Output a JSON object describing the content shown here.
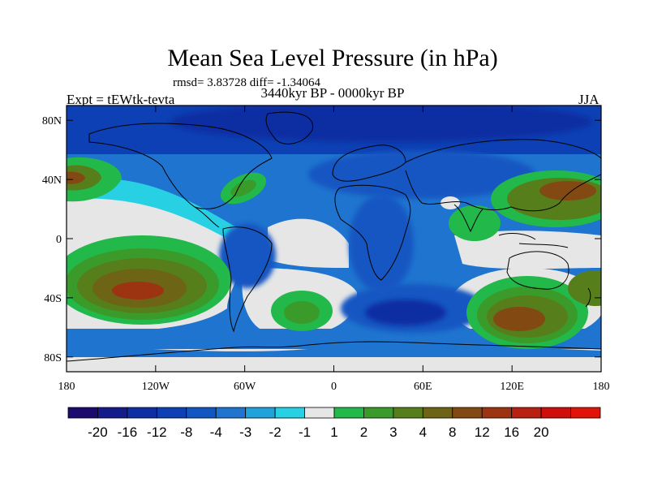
{
  "chart_data": {
    "type": "heatmap",
    "title": "Mean Sea Level Pressure (in hPa)",
    "stats": "rmsd= 3.83728 diff= -1.34064",
    "period": "3440kyr BP - 0000kyr BP",
    "experiment": "Expt = tEWtk-tevta",
    "season": "JJA",
    "x_range": [
      -180,
      180
    ],
    "y_range": [
      -90,
      90
    ],
    "x_ticks": [
      {
        "value": -180,
        "label": "180"
      },
      {
        "value": -120,
        "label": "120W"
      },
      {
        "value": -60,
        "label": "60W"
      },
      {
        "value": 0,
        "label": "0"
      },
      {
        "value": 60,
        "label": "60E"
      },
      {
        "value": 120,
        "label": "120E"
      },
      {
        "value": 180,
        "label": "180"
      }
    ],
    "y_ticks": [
      {
        "value": 80,
        "label": "80N"
      },
      {
        "value": 40,
        "label": "40N"
      },
      {
        "value": 0,
        "label": "0"
      },
      {
        "value": -40,
        "label": "40S"
      },
      {
        "value": -80,
        "label": "80S"
      }
    ],
    "colorbar": {
      "colors": [
        "#1c0a6e",
        "#141b8a",
        "#0e2ea3",
        "#0d40b4",
        "#1256c2",
        "#1f74cf",
        "#22a2da",
        "#27d0e3",
        "#e6e6e6",
        "#22b84a",
        "#3b9b2a",
        "#567f1c",
        "#6d6415",
        "#824913",
        "#9c3412",
        "#b82011",
        "#cf0f0c",
        "#e01408"
      ],
      "labels": [
        "-20",
        "-16",
        "-12",
        "-8",
        "-4",
        "-3",
        "-2",
        "-1",
        "1",
        "2",
        "3",
        "4",
        "8",
        "12",
        "16",
        "20"
      ]
    },
    "anomaly_regions": [
      {
        "region": "North Pacific high (west)",
        "lon": -170,
        "lat": 40,
        "value": 8
      },
      {
        "region": "North Atlantic high",
        "lon": -65,
        "lat": 37,
        "value": 2
      },
      {
        "region": "South Pacific high",
        "lon": -135,
        "lat": -30,
        "value": 12
      },
      {
        "region": "South Atlantic high",
        "lon": -20,
        "lat": -40,
        "value": 3
      },
      {
        "region": "Indian Ocean / Australia high",
        "lon": 110,
        "lat": -42,
        "value": 12
      },
      {
        "region": "North-west Pacific high",
        "lon": 150,
        "lat": 35,
        "value": 12
      },
      {
        "region": "Arctic low",
        "lon": 0,
        "lat": 80,
        "value": -8
      },
      {
        "region": "Southern Ocean low",
        "lon": 40,
        "lat": -45,
        "value": -8
      },
      {
        "region": "South America low",
        "lon": -55,
        "lat": -10,
        "value": -8
      }
    ]
  }
}
